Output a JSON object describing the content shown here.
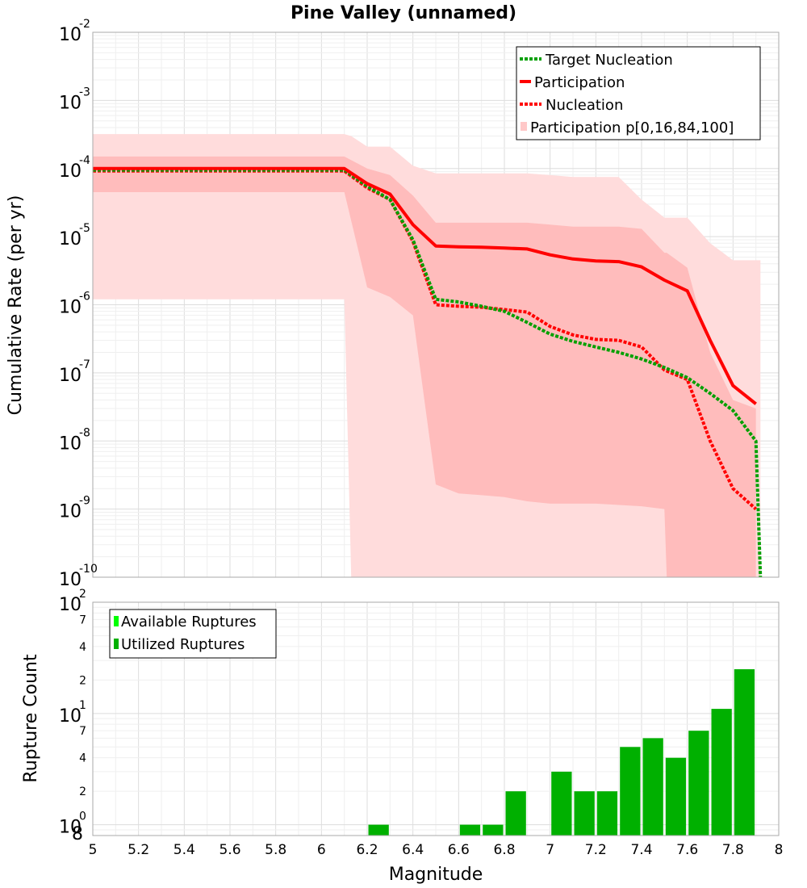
{
  "chart_data": [
    {
      "type": "line",
      "title": "Pine Valley (unnamed)",
      "xlabel": "",
      "ylabel": "Cumulative Rate (per yr)",
      "xlim": [
        5,
        8
      ],
      "ylim": [
        1e-10,
        0.01
      ],
      "yscale": "log",
      "grid": true,
      "legend_position": "top-right",
      "colors": {
        "target": "#00a000",
        "participation": "#ff0000",
        "band_outer": "#ffdcdc",
        "band_inner": "#ffbcbc"
      },
      "legend": [
        "Target Nucleation",
        "Participation",
        "Nucleation",
        "Participation p[0,16,84,100]"
      ],
      "series": [
        {
          "name": "Target Nucleation",
          "style": "dotted",
          "x": [
            5.0,
            6.1,
            6.2,
            6.3,
            6.4,
            6.5,
            6.6,
            6.7,
            6.8,
            6.9,
            7.0,
            7.1,
            7.2,
            7.3,
            7.4,
            7.5,
            7.6,
            7.7,
            7.8,
            7.9,
            7.92
          ],
          "y": [
            9.5e-05,
            9.5e-05,
            5.5e-05,
            3.5e-05,
            9e-06,
            1.2e-06,
            1.1e-06,
            9.5e-07,
            8e-07,
            5.5e-07,
            3.7e-07,
            2.9e-07,
            2.4e-07,
            2e-07,
            1.6e-07,
            1.2e-07,
            8.5e-08,
            5e-08,
            2.8e-08,
            1e-08,
            1e-10
          ]
        },
        {
          "name": "Participation",
          "style": "solid",
          "x": [
            5.0,
            6.1,
            6.2,
            6.3,
            6.4,
            6.5,
            6.6,
            6.7,
            6.8,
            6.9,
            7.0,
            7.1,
            7.2,
            7.3,
            7.4,
            7.5,
            7.6,
            7.7,
            7.8,
            7.9
          ],
          "y": [
            0.0001,
            0.0001,
            6e-05,
            4.2e-05,
            1.5e-05,
            7.3e-06,
            7.1e-06,
            7e-06,
            6.8e-06,
            6.6e-06,
            5.4e-06,
            4.7e-06,
            4.4e-06,
            4.3e-06,
            3.6e-06,
            2.3e-06,
            1.6e-06,
            3e-07,
            6.5e-08,
            3.5e-08
          ]
        },
        {
          "name": "Nucleation",
          "style": "dotted",
          "x": [
            5.0,
            6.1,
            6.2,
            6.3,
            6.4,
            6.5,
            6.6,
            6.7,
            6.8,
            6.9,
            7.0,
            7.1,
            7.2,
            7.3,
            7.4,
            7.5,
            7.6,
            7.7,
            7.8,
            7.9
          ],
          "y": [
            9.2e-05,
            9.2e-05,
            5.2e-05,
            3.5e-05,
            8.5e-06,
            1e-06,
            9.5e-07,
            9.2e-07,
            8.5e-07,
            7.8e-07,
            4.8e-07,
            3.6e-07,
            3.1e-07,
            3e-07,
            2.4e-07,
            1.1e-07,
            8e-08,
            1e-08,
            2e-09,
            1e-09
          ]
        }
      ],
      "bands": [
        {
          "name": "p0-p100",
          "x": [
            5.0,
            6.1,
            6.13,
            6.2,
            6.3,
            6.4,
            6.5,
            6.6,
            6.7,
            6.8,
            6.9,
            7.0,
            7.1,
            7.2,
            7.3,
            7.4,
            7.5,
            7.6,
            7.7,
            7.8,
            7.9,
            7.92
          ],
          "upper": [
            0.00032,
            0.00032,
            0.0003,
            0.00021,
            0.00021,
            0.00011,
            8.5e-05,
            8.5e-05,
            8.5e-05,
            8.5e-05,
            8.5e-05,
            8e-05,
            7.5e-05,
            7.5e-05,
            7.5e-05,
            3.5e-05,
            1.9e-05,
            1.9e-05,
            8e-06,
            4.5e-06,
            4.5e-06,
            4.5e-06
          ],
          "lower": [
            1.2e-06,
            1.2e-06,
            1e-10,
            1e-10,
            1e-10,
            1e-10,
            1e-10,
            1e-10,
            1e-10,
            1e-10,
            1e-10,
            1e-10,
            1e-10,
            1e-10,
            1e-10,
            1e-10,
            1e-10,
            1e-10,
            1e-10,
            1e-10,
            1e-10,
            1e-10
          ]
        },
        {
          "name": "p16-p84",
          "x": [
            5.0,
            6.1,
            6.2,
            6.3,
            6.4,
            6.5,
            6.6,
            6.7,
            6.8,
            6.9,
            7.0,
            7.1,
            7.2,
            7.3,
            7.4,
            7.5,
            7.51,
            7.6,
            7.7,
            7.8,
            7.9
          ],
          "upper": [
            0.00015,
            0.00015,
            0.0001,
            8e-05,
            4e-05,
            1.6e-05,
            1.6e-05,
            1.6e-05,
            1.6e-05,
            1.6e-05,
            1.5e-05,
            1.4e-05,
            1.4e-05,
            1.4e-05,
            1.3e-05,
            5.8e-06,
            5.8e-06,
            3.5e-06,
            2e-07,
            4e-08,
            3e-08
          ],
          "lower": [
            4.5e-05,
            4.5e-05,
            1.8e-06,
            1.3e-06,
            7e-07,
            2.3e-09,
            1.7e-09,
            1.6e-09,
            1.5e-09,
            1.3e-09,
            1.2e-09,
            1.2e-09,
            1.2e-09,
            1.15e-09,
            1.1e-09,
            1e-09,
            1e-10,
            1e-10,
            1e-10,
            1e-10,
            1e-10
          ]
        }
      ]
    },
    {
      "type": "bar",
      "title": "",
      "xlabel": "Magnitude",
      "ylabel": "Rupture Count",
      "xlim": [
        5,
        8
      ],
      "ylim": [
        0.8,
        100
      ],
      "yscale": "log",
      "grid": true,
      "legend_position": "top-left",
      "bin_width": 0.1,
      "legend": [
        "Available Ruptures",
        "Utilized Ruptures"
      ],
      "colors": {
        "available": "#00ff00",
        "utilized": "#00b000"
      },
      "series": [
        {
          "name": "Utilized Ruptures",
          "x": [
            6.25,
            6.65,
            6.75,
            6.85,
            7.05,
            7.15,
            7.25,
            7.35,
            7.45,
            7.55,
            7.65,
            7.75,
            7.85
          ],
          "values": [
            1,
            1,
            1,
            2,
            3,
            2,
            2,
            5,
            6,
            4,
            7,
            11,
            25
          ]
        }
      ]
    }
  ],
  "axis_labels": {
    "x_ticks": [
      "5",
      "5.2",
      "5.4",
      "5.6",
      "5.8",
      "6",
      "6.2",
      "6.4",
      "6.6",
      "6.8",
      "7",
      "7.2",
      "7.4",
      "7.6",
      "7.8",
      "8"
    ],
    "top_decades": [
      {
        "base": "10",
        "exp": "-2"
      },
      {
        "base": "10",
        "exp": "-3"
      },
      {
        "base": "10",
        "exp": "-4"
      },
      {
        "base": "10",
        "exp": "-5"
      },
      {
        "base": "10",
        "exp": "-6"
      },
      {
        "base": "10",
        "exp": "-7"
      },
      {
        "base": "10",
        "exp": "-8"
      },
      {
        "base": "10",
        "exp": "-9"
      },
      {
        "base": "10",
        "exp": "-10"
      }
    ],
    "bottom_decades": [
      {
        "base": "10",
        "exp": "2"
      },
      {
        "base": "10",
        "exp": "1"
      },
      {
        "base": "10",
        "exp": "0"
      }
    ],
    "bottom_minor": [
      "7",
      "4",
      "2",
      "7",
      "4",
      "2",
      "8"
    ]
  }
}
